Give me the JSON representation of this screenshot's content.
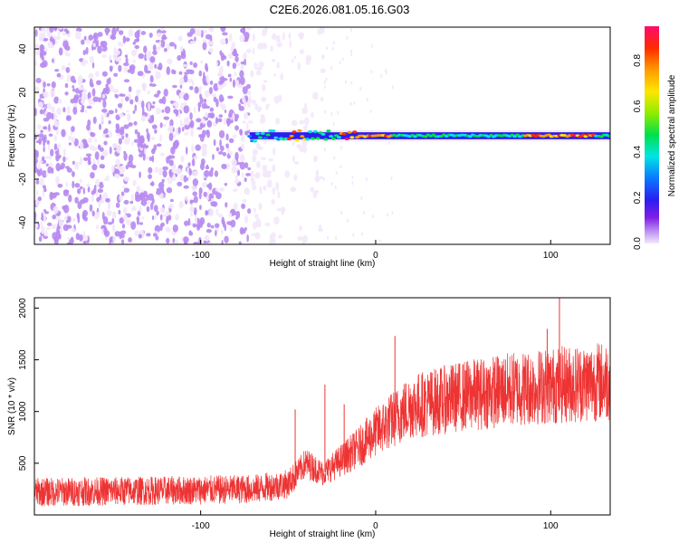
{
  "title": "C2E6.2026.081.05.16.G03",
  "chart_data": [
    {
      "type": "heatmap",
      "name": "spectrogram",
      "xlabel": "Height of straight line (km)",
      "ylabel": "Frequency (Hz)",
      "xlim": [
        -195,
        134
      ],
      "ylim": [
        -50,
        50
      ],
      "xticks": [
        -100,
        0,
        100
      ],
      "yticks": [
        -40,
        -20,
        0,
        20,
        40
      ],
      "colorbar": {
        "label": "Normalized spectral amplitude",
        "range": [
          0,
          0.95
        ],
        "ticks": [
          0.0,
          0.2,
          0.4,
          0.6,
          0.8
        ]
      },
      "features": {
        "broadband_noise_x_range": [
          -195,
          -30
        ],
        "carrier_start_x": -72,
        "carrier_frequency": 0,
        "carrier_peak_regions_x": [
          [
            -50,
            -40
          ],
          [
            -20,
            10
          ],
          [
            85,
            125
          ]
        ]
      }
    },
    {
      "type": "line",
      "name": "snr",
      "xlabel": "Height of straight line (km)",
      "ylabel": "SNR (10 * v/v)",
      "xlim": [
        -195,
        134
      ],
      "ylim": [
        0,
        2100
      ],
      "xticks": [
        -100,
        0,
        100
      ],
      "yticks": [
        500,
        1000,
        1500,
        2000
      ],
      "color": "#ee3333",
      "trend": {
        "x": [
          -195,
          -150,
          -100,
          -70,
          -50,
          -40,
          -30,
          -10,
          0,
          20,
          50,
          80,
          100,
          134
        ],
        "y": [
          220,
          230,
          240,
          250,
          300,
          500,
          400,
          650,
          800,
          1050,
          1150,
          1220,
          1250,
          1300
        ]
      },
      "spikes": [
        {
          "x": -46,
          "y": 1020
        },
        {
          "x": -29,
          "y": 1260
        },
        {
          "x": -18,
          "y": 1070
        },
        {
          "x": 11,
          "y": 1730
        },
        {
          "x": 98,
          "y": 1800
        },
        {
          "x": 105,
          "y": 2100
        }
      ]
    }
  ]
}
